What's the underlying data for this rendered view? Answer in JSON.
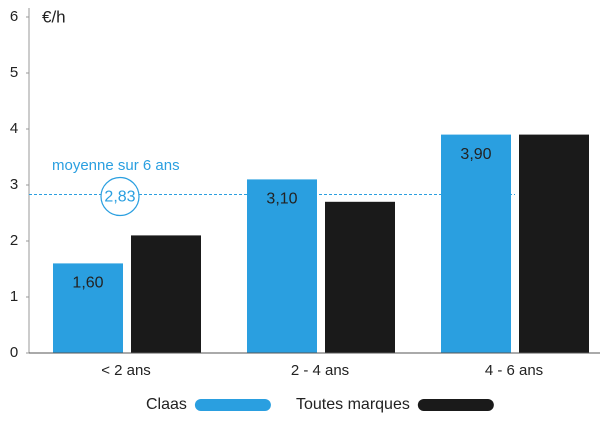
{
  "chart_data": {
    "type": "bar",
    "y_label": "€/h",
    "categories": [
      "< 2 ans",
      "2 - 4 ans",
      "4 - 6 ans"
    ],
    "series": [
      {
        "name": "Claas",
        "color": "#2a9fe0",
        "values": [
          1.6,
          3.1,
          3.9
        ],
        "value_labels": [
          "1,60",
          "3,10",
          "3,90"
        ]
      },
      {
        "name": "Toutes marques",
        "color": "#1a1a1a",
        "values": [
          2.1,
          2.7,
          3.9
        ]
      }
    ],
    "average": {
      "label": "moyenne sur 6 ans",
      "value": 2.83,
      "value_label": "2,83"
    },
    "ylim": [
      0,
      6
    ],
    "yticks": [
      0,
      1,
      2,
      3,
      4,
      5,
      6
    ],
    "grid": false
  }
}
